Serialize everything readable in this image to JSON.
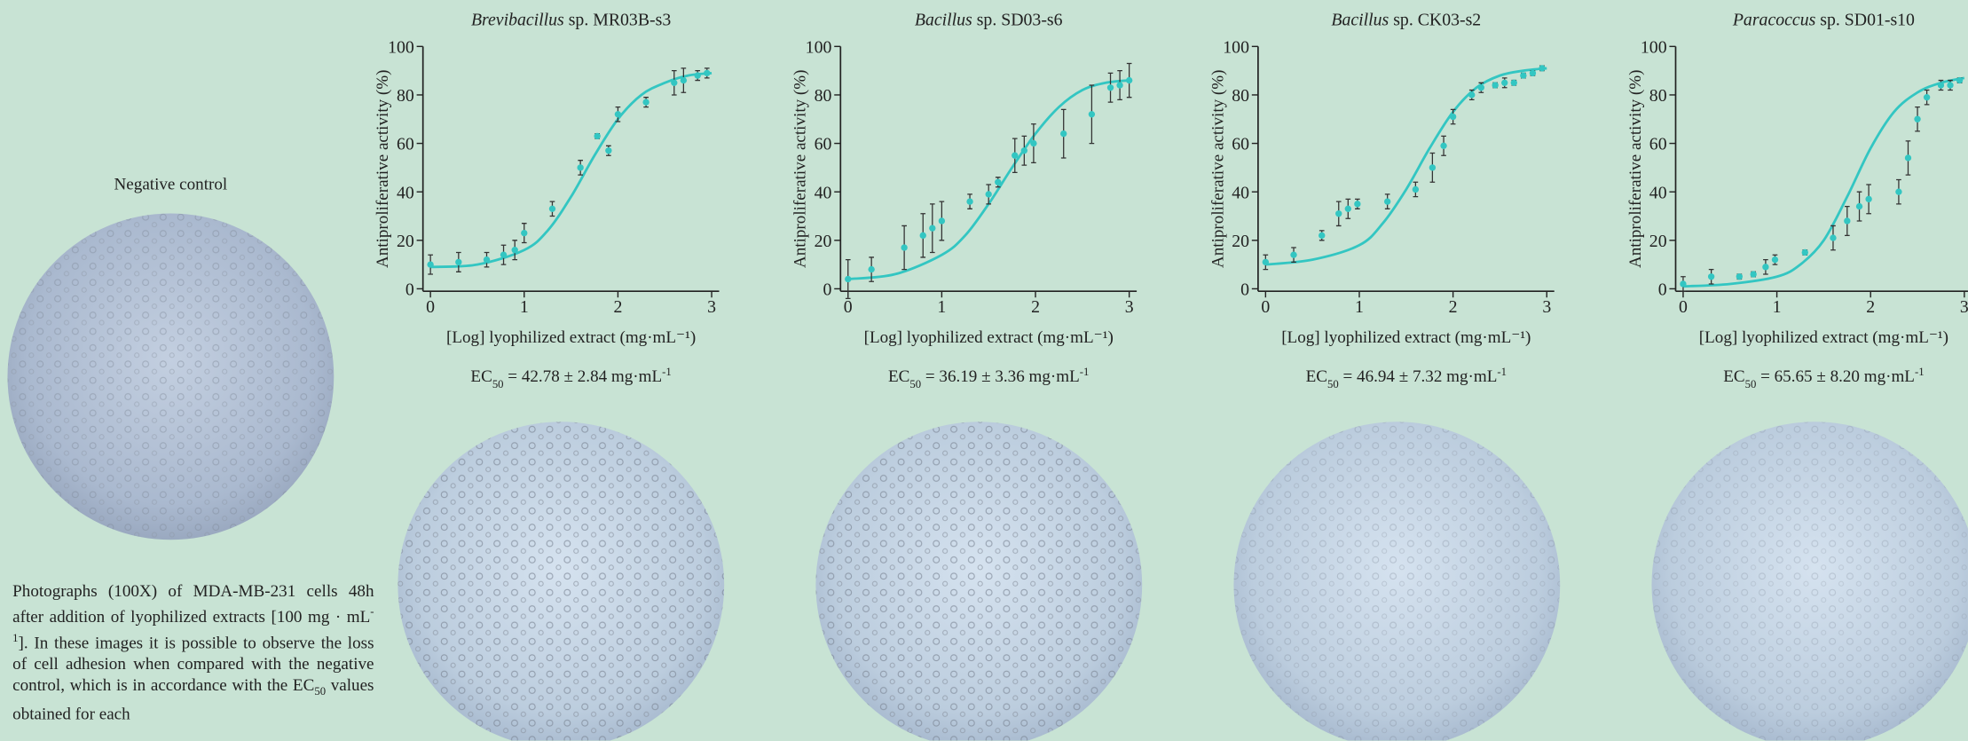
{
  "negative_control_label": "Negative control",
  "caption": {
    "part1": "Photographs (100X) of MDA-MB-231 cells 48h after addition of lyophilized extracts [100 mg · mL",
    "sup": "-1",
    "part2": "]. In these images it is possible to observe the loss of cell adhesion when compared with the negative control, which is in accordance with the EC",
    "sub": "50",
    "part3": " values obtained for each"
  },
  "chart_data": [
    {
      "type": "scatter",
      "title": {
        "genus": "Brevibacillus",
        "rest": " sp. MR03B-s3"
      },
      "xlabel": "[Log] lyophilized extract (mg·mL⁻¹)",
      "ylabel": "Antiproliferative activity (%)",
      "xlim": [
        -0.08,
        3.08
      ],
      "ylim": [
        -1,
        100
      ],
      "xticks": [
        0,
        1,
        2,
        3
      ],
      "yticks": [
        0,
        20,
        40,
        60,
        80,
        100
      ],
      "color": "#33c6c2",
      "series": [
        {
          "x": [
            0,
            0.3,
            0.6,
            0.78,
            0.9,
            1.0,
            1.3,
            1.6,
            1.78,
            1.9,
            2.0,
            2.3,
            2.6,
            2.7,
            2.85,
            2.95
          ],
          "values": [
            10,
            11,
            12,
            14,
            16,
            23,
            33,
            50,
            63,
            57,
            72,
            77,
            85,
            86,
            88,
            89
          ],
          "errors": [
            4,
            4,
            3,
            4,
            4,
            4,
            3,
            3,
            1,
            2,
            3,
            2,
            5,
            5,
            2,
            2
          ]
        }
      ],
      "fit": {
        "x": [
          0,
          0.5,
          1,
          1.25,
          1.5,
          1.75,
          2,
          2.25,
          2.5,
          2.75,
          3
        ],
        "values": [
          9,
          10,
          16,
          24,
          38,
          55,
          70,
          80,
          85,
          88,
          89
        ]
      },
      "ec50": {
        "prefix": "EC",
        "sub": "50",
        "text": " = 42.78 ± 2.84  mg·mL",
        "sup": "-1"
      }
    },
    {
      "type": "scatter",
      "title": {
        "genus": "Bacillus",
        "rest": " sp. SD03-s6"
      },
      "xlabel": "[Log] lyophilized extract (mg·mL⁻¹)",
      "ylabel": "Antiproliferative activity (%)",
      "xlim": [
        -0.08,
        3.08
      ],
      "ylim": [
        -1,
        100
      ],
      "xticks": [
        0,
        1,
        2,
        3
      ],
      "yticks": [
        0,
        20,
        40,
        60,
        80,
        100
      ],
      "color": "#33c6c2",
      "series": [
        {
          "x": [
            0,
            0.25,
            0.6,
            0.8,
            0.9,
            1.0,
            1.3,
            1.5,
            1.6,
            1.78,
            1.88,
            1.98,
            2.3,
            2.6,
            2.8,
            2.9,
            3.0
          ],
          "values": [
            4,
            8,
            17,
            22,
            25,
            28,
            36,
            39,
            44,
            55,
            57,
            60,
            64,
            72,
            83,
            84,
            86
          ],
          "errors": [
            8,
            5,
            9,
            9,
            10,
            8,
            3,
            4,
            2,
            7,
            6,
            8,
            10,
            12,
            6,
            6,
            7
          ]
        }
      ],
      "fit": {
        "x": [
          0,
          0.5,
          1,
          1.25,
          1.5,
          1.75,
          2,
          2.25,
          2.5,
          2.75,
          3
        ],
        "values": [
          4,
          6,
          14,
          22,
          35,
          50,
          64,
          75,
          82,
          85,
          86
        ]
      },
      "ec50": {
        "prefix": "EC",
        "sub": "50",
        "text": " = 36.19 ± 3.36 mg·mL",
        "sup": "-1"
      }
    },
    {
      "type": "scatter",
      "title": {
        "genus": "Bacillus",
        "rest": " sp. CK03-s2"
      },
      "xlabel": "[Log] lyophilized extract (mg·mL⁻¹)",
      "ylabel": "Antiproliferative activity (%)",
      "xlim": [
        -0.08,
        3.08
      ],
      "ylim": [
        -1,
        100
      ],
      "xticks": [
        0,
        1,
        2,
        3
      ],
      "yticks": [
        0,
        20,
        40,
        60,
        80,
        100
      ],
      "color": "#33c6c2",
      "series": [
        {
          "x": [
            0,
            0.3,
            0.6,
            0.78,
            0.88,
            0.98,
            1.3,
            1.6,
            1.78,
            1.9,
            2.0,
            2.2,
            2.3,
            2.45,
            2.55,
            2.65,
            2.75,
            2.85,
            2.95
          ],
          "values": [
            11,
            14,
            22,
            31,
            33,
            35,
            36,
            41,
            50,
            59,
            71,
            80,
            83,
            84,
            85,
            85,
            88,
            89,
            91
          ],
          "errors": [
            3,
            3,
            2,
            5,
            4,
            2,
            3,
            3,
            6,
            4,
            3,
            2,
            2,
            1,
            2,
            1,
            1,
            1,
            1
          ]
        }
      ],
      "fit": {
        "x": [
          0,
          0.5,
          1,
          1.25,
          1.5,
          1.75,
          2,
          2.25,
          2.5,
          2.75,
          3
        ],
        "values": [
          10,
          12,
          18,
          27,
          41,
          58,
          73,
          83,
          88,
          90,
          91
        ]
      },
      "ec50": {
        "prefix": "EC",
        "sub": "50",
        "text": " = 46.94 ± 7.32 mg·mL",
        "sup": "-1"
      }
    },
    {
      "type": "scatter",
      "title": {
        "genus": "Paracoccus",
        "rest": " sp. SD01-s10"
      },
      "xlabel": "[Log] lyophilized extract (mg·mL⁻¹)",
      "ylabel": "Antiproliferative activity (%)",
      "xlim": [
        -0.08,
        3.08
      ],
      "ylim": [
        -1,
        100
      ],
      "xticks": [
        0,
        1,
        2,
        3
      ],
      "yticks": [
        0,
        20,
        40,
        60,
        80,
        100
      ],
      "color": "#33c6c2",
      "series": [
        {
          "x": [
            0,
            0.3,
            0.6,
            0.75,
            0.88,
            0.98,
            1.3,
            1.6,
            1.75,
            1.88,
            1.98,
            2.3,
            2.4,
            2.5,
            2.6,
            2.75,
            2.85,
            2.95
          ],
          "values": [
            2,
            5,
            5,
            6,
            9,
            12,
            15,
            21,
            28,
            34,
            37,
            40,
            54,
            70,
            79,
            84,
            84,
            86
          ],
          "errors": [
            3,
            3,
            1,
            1,
            3,
            2,
            1,
            5,
            6,
            6,
            6,
            5,
            7,
            5,
            3,
            2,
            2,
            1
          ]
        }
      ],
      "fit": {
        "x": [
          0,
          0.5,
          1,
          1.25,
          1.5,
          1.75,
          2,
          2.25,
          2.5,
          2.75,
          3
        ],
        "values": [
          1,
          2,
          5,
          10,
          20,
          38,
          58,
          73,
          81,
          85,
          87
        ]
      },
      "ec50": {
        "prefix": "EC",
        "sub": "50",
        "text": " = 65.65 ± 8.20 mg·mL",
        "sup": "-1"
      }
    }
  ]
}
